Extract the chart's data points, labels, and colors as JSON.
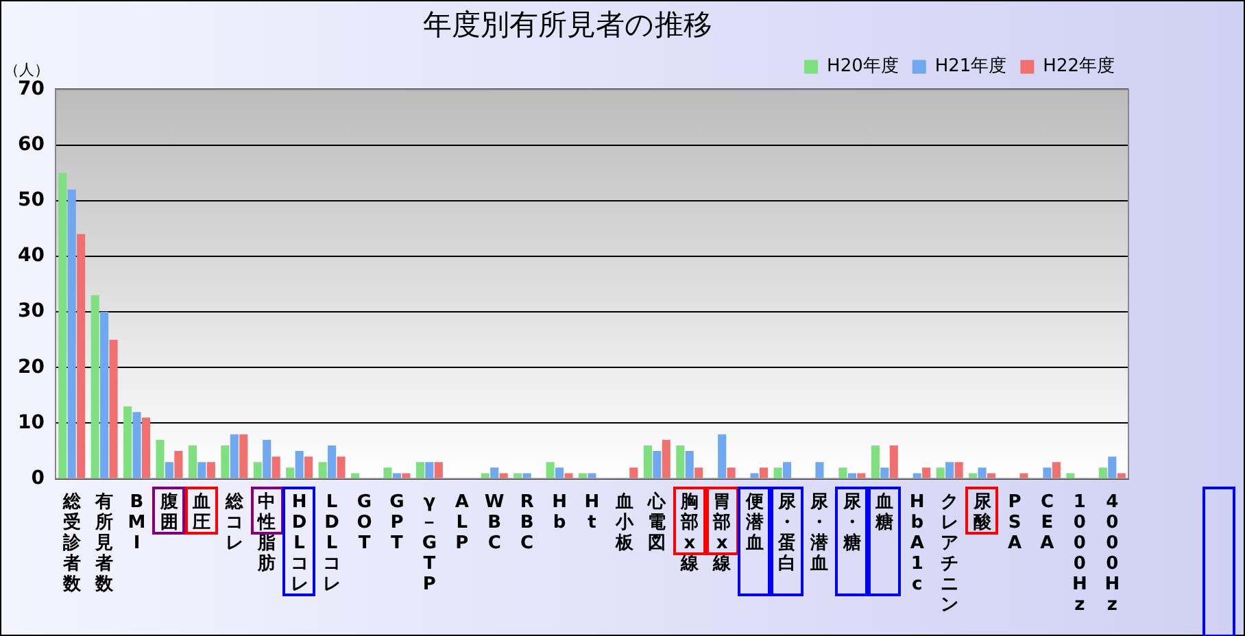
{
  "chart_data": {
    "type": "bar",
    "title": "年度別有所見者の推移",
    "ylabel": "（人）",
    "categories": [
      "総受診者数",
      "有所見者数",
      "BMI",
      "腹囲",
      "血圧",
      "総コレ",
      "中性脂肪",
      "HDLコレ",
      "LDLコレ",
      "GOT",
      "GPT",
      "γ－GTP",
      "ALP",
      "WBC",
      "RBC",
      "Hb",
      "Ht",
      "血小板",
      "心電図",
      "胸部x線",
      "胃部x線",
      "便潜血",
      "尿・蛋白",
      "尿・潜血",
      "尿・糖",
      "血糖",
      "HbA1c",
      "クレアチニン",
      "尿酸",
      "PSA",
      "CEA",
      "1000Hz",
      "4000Hz"
    ],
    "series": [
      {
        "name": "H20年度",
        "color": "#7fe07f",
        "values": [
          55,
          33,
          13,
          7,
          6,
          6,
          3,
          2,
          3,
          1,
          2,
          3,
          0,
          1,
          1,
          3,
          1,
          0,
          6,
          6,
          0,
          0,
          2,
          0,
          2,
          6,
          0,
          2,
          1,
          0,
          0,
          1,
          2
        ]
      },
      {
        "name": "H21年度",
        "color": "#6fa8f0",
        "values": [
          52,
          30,
          12,
          3,
          3,
          8,
          7,
          5,
          6,
          0,
          1,
          3,
          0,
          2,
          1,
          2,
          1,
          0,
          5,
          5,
          8,
          1,
          3,
          3,
          1,
          2,
          1,
          3,
          2,
          0,
          2,
          0,
          4
        ]
      },
      {
        "name": "H22年度",
        "color": "#f07070",
        "values": [
          44,
          25,
          11,
          5,
          3,
          8,
          4,
          4,
          4,
          0,
          1,
          3,
          0,
          1,
          0,
          1,
          0,
          2,
          7,
          2,
          2,
          2,
          0,
          0,
          1,
          6,
          2,
          3,
          1,
          1,
          3,
          0,
          1
        ]
      }
    ],
    "ylim": [
      0,
      70
    ],
    "yticks": [
      0,
      10,
      20,
      30,
      40,
      50,
      60,
      70
    ],
    "grid": "y",
    "legend": "top right"
  }
}
